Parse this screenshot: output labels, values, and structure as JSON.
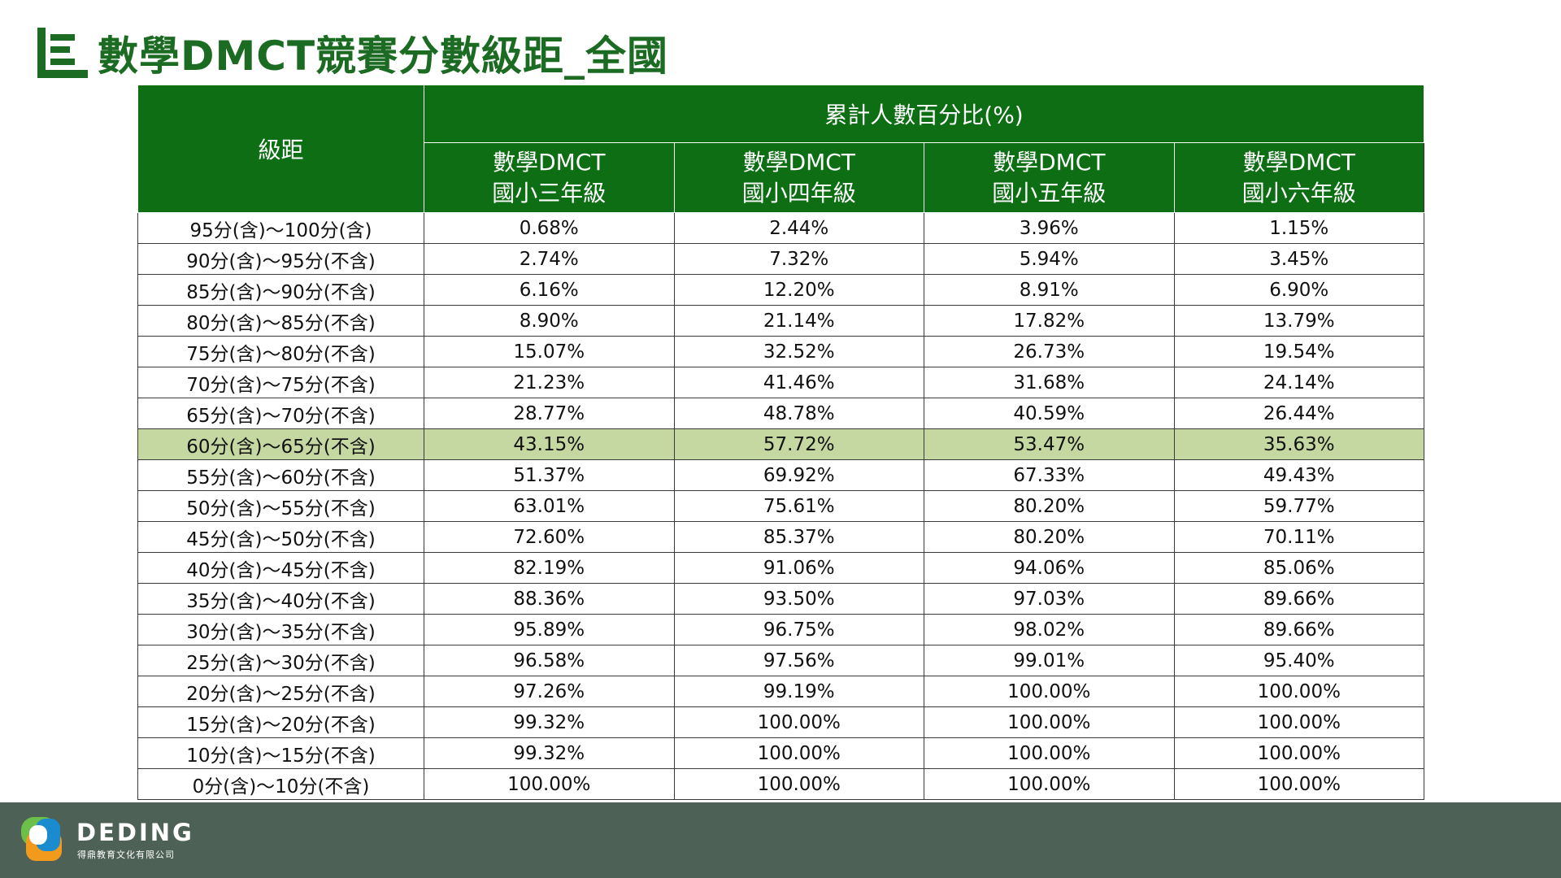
{
  "header": {
    "title": "數學DMCT競賽分數級距_全國",
    "icon": "document-lines-icon"
  },
  "table": {
    "range_header": "級距",
    "group_header": "累計人數百分比(%)",
    "grade_headers": [
      {
        "line1": "數學DMCT",
        "line2": "國小三年級"
      },
      {
        "line1": "數學DMCT",
        "line2": "國小四年級"
      },
      {
        "line1": "數學DMCT",
        "line2": "國小五年級"
      },
      {
        "line1": "數學DMCT",
        "line2": "國小六年級"
      }
    ],
    "highlight_row_index": 7,
    "highlight_color": "#c5d8a2",
    "header_color": "#0d6e14",
    "rows": [
      {
        "range": "95分(含)～100分(含)",
        "values": [
          "0.68%",
          "2.44%",
          "3.96%",
          "1.15%"
        ]
      },
      {
        "range": "90分(含)～95分(不含)",
        "values": [
          "2.74%",
          "7.32%",
          "5.94%",
          "3.45%"
        ]
      },
      {
        "range": "85分(含)～90分(不含)",
        "values": [
          "6.16%",
          "12.20%",
          "8.91%",
          "6.90%"
        ]
      },
      {
        "range": "80分(含)～85分(不含)",
        "values": [
          "8.90%",
          "21.14%",
          "17.82%",
          "13.79%"
        ]
      },
      {
        "range": "75分(含)～80分(不含)",
        "values": [
          "15.07%",
          "32.52%",
          "26.73%",
          "19.54%"
        ]
      },
      {
        "range": "70分(含)～75分(不含)",
        "values": [
          "21.23%",
          "41.46%",
          "31.68%",
          "24.14%"
        ]
      },
      {
        "range": "65分(含)～70分(不含)",
        "values": [
          "28.77%",
          "48.78%",
          "40.59%",
          "26.44%"
        ]
      },
      {
        "range": "60分(含)～65分(不含)",
        "values": [
          "43.15%",
          "57.72%",
          "53.47%",
          "35.63%"
        ]
      },
      {
        "range": "55分(含)～60分(不含)",
        "values": [
          "51.37%",
          "69.92%",
          "67.33%",
          "49.43%"
        ]
      },
      {
        "range": "50分(含)～55分(不含)",
        "values": [
          "63.01%",
          "75.61%",
          "80.20%",
          "59.77%"
        ]
      },
      {
        "range": "45分(含)～50分(不含)",
        "values": [
          "72.60%",
          "85.37%",
          "80.20%",
          "70.11%"
        ]
      },
      {
        "range": "40分(含)～45分(不含)",
        "values": [
          "82.19%",
          "91.06%",
          "94.06%",
          "85.06%"
        ]
      },
      {
        "range": "35分(含)～40分(不含)",
        "values": [
          "88.36%",
          "93.50%",
          "97.03%",
          "89.66%"
        ]
      },
      {
        "range": "30分(含)～35分(不含)",
        "values": [
          "95.89%",
          "96.75%",
          "98.02%",
          "89.66%"
        ]
      },
      {
        "range": "25分(含)～30分(不含)",
        "values": [
          "96.58%",
          "97.56%",
          "99.01%",
          "95.40%"
        ]
      },
      {
        "range": "20分(含)～25分(不含)",
        "values": [
          "97.26%",
          "99.19%",
          "100.00%",
          "100.00%"
        ]
      },
      {
        "range": "15分(含)～20分(不含)",
        "values": [
          "99.32%",
          "100.00%",
          "100.00%",
          "100.00%"
        ]
      },
      {
        "range": "10分(含)～15分(不含)",
        "values": [
          "99.32%",
          "100.00%",
          "100.00%",
          "100.00%"
        ]
      },
      {
        "range": "0分(含)～10分(不含)",
        "values": [
          "100.00%",
          "100.00%",
          "100.00%",
          "100.00%"
        ]
      }
    ]
  },
  "footer": {
    "logo_icon": "deding-logo-icon",
    "brand": "DEDING",
    "company": "得鼎教育文化有限公司",
    "background": "#4e6156"
  }
}
